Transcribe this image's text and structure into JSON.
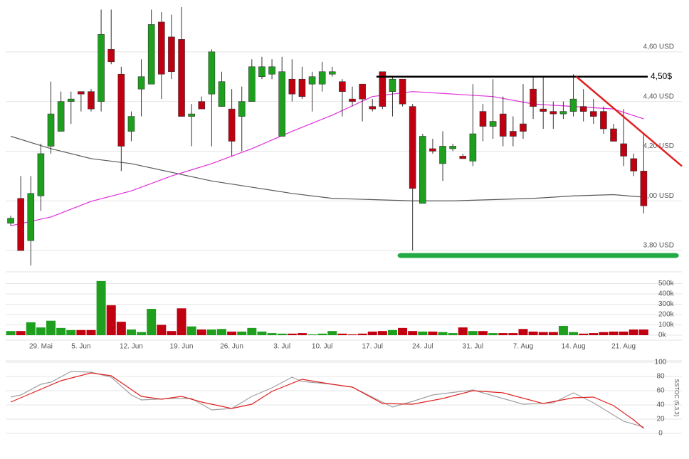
{
  "chart_data": [
    {
      "type": "candlestick",
      "open": [
        3.91,
        4.01,
        3.84,
        4.02,
        4.22,
        4.28,
        4.4,
        4.44,
        4.44,
        4.4,
        4.61,
        4.51,
        4.28,
        4.45,
        4.47,
        4.72,
        4.66,
        4.65,
        4.34,
        4.4,
        4.43,
        4.38,
        4.37,
        4.34,
        4.4,
        4.5,
        4.51,
        4.26,
        4.49,
        4.49,
        4.47,
        4.47,
        4.51,
        4.48,
        4.41,
        4.47,
        4.38,
        4.52,
        4.44,
        4.49,
        4.38,
        3.99,
        4.21,
        4.15,
        4.21,
        4.18,
        4.16,
        4.36,
        4.3,
        4.35,
        4.28,
        4.31,
        4.45,
        4.37,
        4.36,
        4.35,
        4.36,
        4.38,
        4.36,
        4.36,
        4.29,
        4.23,
        4.17,
        4.12
      ],
      "high": [
        3.94,
        4.1,
        4.1,
        4.23,
        4.48,
        4.44,
        4.44,
        4.44,
        4.45,
        4.77,
        4.77,
        4.54,
        4.36,
        4.57,
        4.77,
        4.76,
        4.75,
        4.78,
        4.39,
        4.42,
        4.61,
        4.52,
        4.45,
        4.46,
        4.57,
        4.58,
        4.57,
        4.58,
        4.57,
        4.54,
        4.52,
        4.56,
        4.54,
        4.49,
        4.46,
        4.47,
        4.41,
        4.52,
        4.5,
        4.49,
        4.39,
        4.27,
        4.25,
        4.28,
        4.23,
        4.19,
        4.47,
        4.39,
        4.49,
        4.42,
        4.34,
        4.47,
        4.5,
        4.5,
        4.4,
        4.4,
        4.51,
        4.45,
        4.41,
        4.38,
        4.31,
        4.37,
        4.19,
        4.27
      ],
      "low": [
        3.9,
        3.8,
        3.74,
        3.96,
        4.19,
        4.28,
        4.31,
        4.36,
        4.36,
        4.36,
        4.55,
        4.12,
        4.24,
        4.34,
        4.47,
        4.41,
        4.49,
        4.34,
        4.22,
        4.37,
        4.22,
        4.38,
        4.18,
        4.2,
        4.4,
        4.49,
        4.49,
        4.26,
        4.4,
        4.41,
        4.36,
        4.44,
        4.5,
        4.34,
        4.38,
        4.32,
        4.36,
        4.37,
        4.34,
        4.38,
        3.8,
        3.99,
        4.19,
        4.08,
        4.2,
        4.17,
        4.14,
        4.24,
        4.25,
        4.22,
        4.22,
        4.25,
        4.33,
        4.29,
        4.29,
        4.33,
        4.34,
        4.32,
        4.31,
        4.27,
        4.24,
        4.14,
        4.1,
        3.95
      ],
      "close": [
        3.93,
        3.8,
        4.03,
        4.19,
        4.35,
        4.4,
        4.41,
        4.43,
        4.37,
        4.67,
        4.56,
        4.22,
        4.34,
        4.5,
        4.71,
        4.51,
        4.52,
        4.34,
        4.35,
        4.37,
        4.6,
        4.48,
        4.24,
        4.4,
        4.54,
        4.54,
        4.54,
        4.52,
        4.43,
        4.42,
        4.5,
        4.52,
        4.52,
        4.44,
        4.4,
        4.41,
        4.37,
        4.38,
        4.49,
        4.39,
        4.05,
        4.26,
        4.2,
        4.22,
        4.22,
        4.17,
        4.27,
        4.3,
        4.32,
        4.26,
        4.26,
        4.28,
        4.38,
        4.36,
        4.35,
        4.36,
        4.41,
        4.36,
        4.34,
        4.29,
        4.24,
        4.18,
        4.12,
        3.98
      ],
      "up_color": "#1ea01e",
      "down_color": "#c00010",
      "xlim": [
        -0.5,
        66.8
      ],
      "ylim": [
        3.72,
        4.78
      ],
      "yticks": [
        {
          "value": 3.8,
          "label": "3,80 USD"
        },
        {
          "value": 4.0,
          "label": "4,00 USD"
        },
        {
          "value": 4.2,
          "label": "4,20 USD"
        },
        {
          "value": 4.4,
          "label": "4,40 USD"
        },
        {
          "value": 4.6,
          "label": "4,60 USD"
        }
      ],
      "grid": true,
      "series": [
        {
          "color": "#5a5a5a",
          "x": [
            0,
            4,
            8,
            12,
            16,
            20,
            24,
            28,
            32,
            36,
            40,
            44,
            48,
            52,
            56,
            60,
            63
          ],
          "values": [
            4.26,
            4.21,
            4.17,
            4.15,
            4.115,
            4.08,
            4.055,
            4.03,
            4.01,
            4.005,
            4.0,
            4.0,
            4.005,
            4.01,
            4.02,
            4.025,
            4.015
          ]
        },
        {
          "color": "#e030d8",
          "x": [
            0,
            4,
            8,
            12,
            16,
            20,
            24,
            28,
            32,
            36,
            40,
            44,
            48,
            52,
            56,
            60,
            63
          ],
          "values": [
            3.9,
            3.935,
            3.998,
            4.04,
            4.1,
            4.15,
            4.21,
            4.28,
            4.345,
            4.42,
            4.44,
            4.43,
            4.42,
            4.39,
            4.38,
            4.37,
            4.33
          ]
        }
      ],
      "annotations": [
        {
          "type": "line",
          "label": "4,50$",
          "color": "#000000",
          "x": [
            36.4,
            63.4
          ],
          "y": [
            4.5,
            4.5
          ]
        },
        {
          "type": "line",
          "color": "#e02020",
          "x": [
            56.3,
            66.8
          ],
          "y": [
            4.5,
            4.14
          ]
        },
        {
          "type": "band",
          "color": "#22aa44",
          "x": [
            38.5,
            66.5
          ],
          "y": [
            3.77,
            3.79
          ]
        }
      ]
    },
    {
      "type": "bar",
      "categories": [
        null,
        null,
        null,
        "29. Mai",
        null,
        null,
        null,
        "5. Jun",
        null,
        null,
        null,
        null,
        "12. Jun",
        null,
        null,
        null,
        null,
        "19. Jun",
        null,
        null,
        null,
        null,
        "26. Jun",
        null,
        null,
        null,
        null,
        "3. Jul",
        null,
        null,
        null,
        "10. Jul",
        null,
        null,
        null,
        null,
        "17. Jul",
        null,
        null,
        null,
        null,
        "24. Jul",
        null,
        null,
        null,
        null,
        "31. Jul",
        null,
        null,
        null,
        null,
        "7. Aug",
        null,
        null,
        null,
        null,
        "14. Aug",
        null,
        null,
        null,
        null,
        "21. Aug",
        null,
        null
      ],
      "values": [
        40000,
        40000,
        125000,
        75000,
        140000,
        70000,
        50000,
        50000,
        50000,
        525000,
        290000,
        130000,
        55000,
        30000,
        255000,
        100000,
        40000,
        260000,
        85000,
        55000,
        55000,
        60000,
        35000,
        35000,
        70000,
        35000,
        20000,
        15000,
        15000,
        20000,
        8000,
        15000,
        40000,
        15000,
        8000,
        15000,
        35000,
        40000,
        50000,
        70000,
        40000,
        35000,
        35000,
        30000,
        20000,
        75000,
        40000,
        40000,
        20000,
        20000,
        20000,
        60000,
        35000,
        30000,
        30000,
        90000,
        30000,
        15000,
        20000,
        30000,
        35000,
        35000,
        55000,
        55000
      ],
      "up_color": "#1ea01e",
      "down_color": "#c00010",
      "ylim": [
        0,
        600000
      ],
      "yticks": [
        {
          "value": 0,
          "label": "0k"
        },
        {
          "value": 100000,
          "label": "100k"
        },
        {
          "value": 200000,
          "label": "200k"
        },
        {
          "value": 300000,
          "label": "300k"
        },
        {
          "value": 400000,
          "label": "400k"
        },
        {
          "value": 500000,
          "label": "500k"
        }
      ],
      "grid": true
    },
    {
      "type": "line",
      "y_label": "SSTOC (5,3,3)",
      "xlim": [
        -0.5,
        66.8
      ],
      "ylim": [
        0,
        100
      ],
      "yticks": [
        0,
        20,
        40,
        60,
        80,
        100
      ],
      "grid": true,
      "series": [
        {
          "color": "#a0a0a0",
          "x": [
            0,
            1,
            3,
            4,
            6,
            8,
            10,
            12,
            13,
            16,
            18,
            20,
            22,
            24,
            26,
            28,
            29,
            32,
            34,
            36,
            38,
            40,
            42,
            46,
            48,
            51,
            54,
            56,
            58,
            61,
            63
          ],
          "values": [
            51,
            54,
            69,
            72,
            87,
            86,
            79,
            54,
            47,
            49,
            49,
            33,
            35,
            52,
            64,
            79,
            73,
            69,
            65,
            51,
            37,
            45,
            54,
            61,
            53,
            41,
            43,
            57,
            43,
            17,
            9
          ]
        },
        {
          "color": "#e02020",
          "x": [
            0,
            2,
            5,
            8,
            10,
            13,
            15,
            17,
            19,
            22,
            24,
            26,
            29,
            32,
            34,
            37,
            40,
            43,
            46,
            49,
            53,
            56,
            58,
            60,
            62,
            63
          ],
          "values": [
            44,
            56,
            74,
            85,
            81,
            52,
            48,
            52,
            44,
            35,
            41,
            59,
            76,
            69,
            65,
            42,
            41,
            49,
            60,
            57,
            42,
            50,
            51,
            39,
            19,
            7
          ]
        }
      ]
    }
  ]
}
